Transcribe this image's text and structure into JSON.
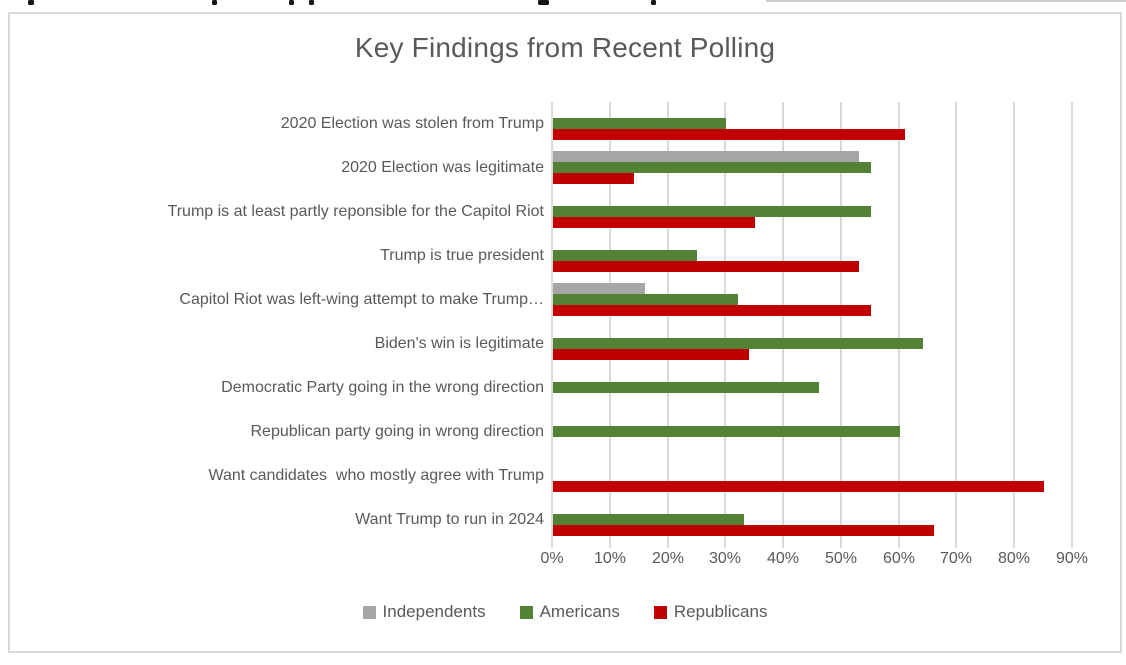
{
  "colors": {
    "text": "#595959",
    "gridline": "#d9d9d9",
    "frame_border": "#d9d9d9",
    "background": "#ffffff",
    "independents": "#a6a6a6",
    "americans": "#538135",
    "republicans": "#c00000"
  },
  "chart_data": {
    "type": "bar",
    "orientation": "horizontal",
    "title": "Key Findings from Recent Polling",
    "categories": [
      "2020 Election was stolen from Trump",
      "2020 Election was legitimate",
      "Trump is at least partly reponsible for the Capitol Riot",
      "Trump is true president",
      "Capitol Riot was left-wing attempt to make Trump…",
      "Biden's win is legitimate",
      "Democratic Party going in the wrong direction",
      "Republican party going in wrong direction",
      "Want candidates  who mostly agree with Trump",
      "Want Trump to run in 2024"
    ],
    "series": [
      {
        "name": "Independents",
        "color": "#a6a6a6",
        "values": [
          null,
          53,
          null,
          null,
          16,
          null,
          null,
          null,
          null,
          null
        ]
      },
      {
        "name": "Americans",
        "color": "#538135",
        "values": [
          30,
          55,
          55,
          25,
          32,
          64,
          46,
          60,
          null,
          33
        ]
      },
      {
        "name": "Republicans",
        "color": "#c00000",
        "values": [
          61,
          14,
          35,
          53,
          55,
          34,
          null,
          null,
          85,
          66
        ]
      }
    ],
    "x_axis": {
      "min": 0,
      "max": 90,
      "tick_step": 10,
      "ticks": [
        "0%",
        "10%",
        "20%",
        "30%",
        "40%",
        "50%",
        "60%",
        "70%",
        "80%",
        "90%"
      ],
      "gridlines": true
    },
    "legend": {
      "position": "bottom",
      "entries": [
        "Independents",
        "Americans",
        "Republicans"
      ]
    }
  }
}
